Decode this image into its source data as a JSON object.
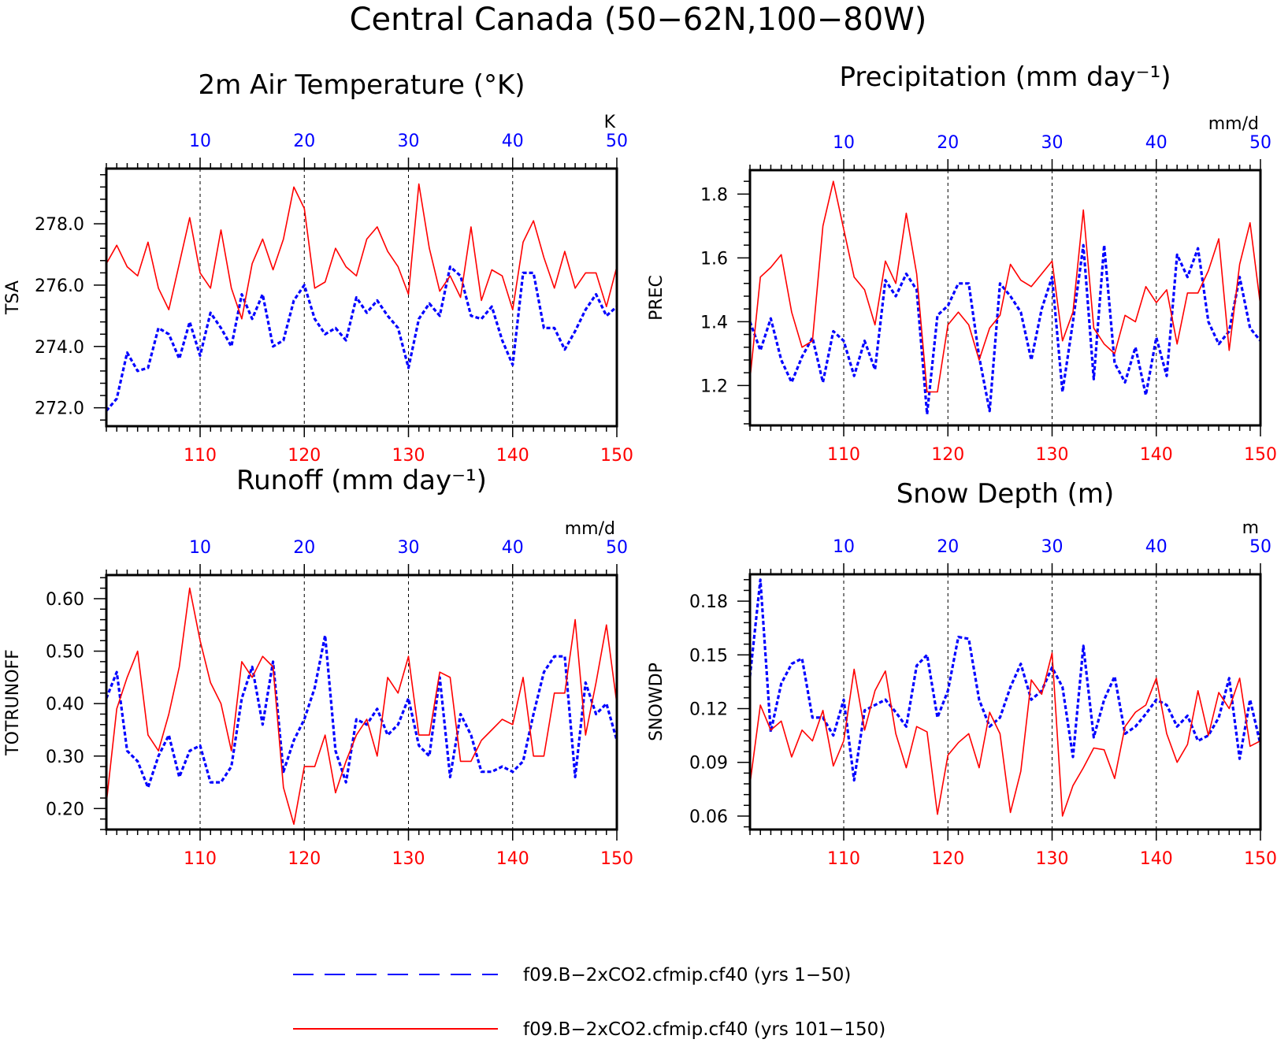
{
  "title": "Central Canada (50−62N,100−80W)",
  "colors": {
    "series_a": "#0000ff",
    "series_b": "#ff0000",
    "axis": "#000000"
  },
  "legend": {
    "placement": "bottom",
    "entries": [
      {
        "label": "f09.B−2xCO2.cfmip.cf40 (yrs 1−50)",
        "color": "#0000ff",
        "style": "dashed"
      },
      {
        "label": "f09.B−2xCO2.cfmip.cf40 (yrs 101−150)",
        "color": "#ff0000",
        "style": "solid"
      }
    ]
  },
  "chart_data": [
    {
      "type": "line",
      "title": "2m Air Temperature (°K)",
      "ylabel": "TSA",
      "unit": "K",
      "ylim": [
        271.4,
        279.8
      ],
      "yticks": [
        272.0,
        274.0,
        276.0,
        278.0
      ],
      "ytick_labels": [
        "272.0",
        "274.0",
        "276.0",
        "278.0"
      ],
      "bottom_axis": {
        "xlim": [
          101,
          150
        ],
        "ticks": [
          110,
          120,
          130,
          140,
          150
        ],
        "tick_labels": [
          "110",
          "120",
          "130",
          "140",
          "150"
        ]
      },
      "top_axis": {
        "xlim": [
          1,
          50
        ],
        "ticks": [
          10,
          20,
          30,
          40,
          50
        ],
        "tick_labels": [
          "10",
          "20",
          "30",
          "40",
          "50"
        ]
      },
      "grid": "dashed vertical at decades",
      "series": [
        {
          "axis": "top",
          "color": "#0000ff",
          "style": "dashed",
          "x": [
            1,
            2,
            3,
            4,
            5,
            6,
            7,
            8,
            9,
            10,
            11,
            12,
            13,
            14,
            15,
            16,
            17,
            18,
            19,
            20,
            21,
            22,
            23,
            24,
            25,
            26,
            27,
            28,
            29,
            30,
            31,
            32,
            33,
            34,
            35,
            36,
            37,
            38,
            39,
            40,
            41,
            42,
            43,
            44,
            45,
            46,
            47,
            48,
            49,
            50
          ],
          "values": [
            271.9,
            272.3,
            273.8,
            273.2,
            273.3,
            274.6,
            274.4,
            273.6,
            274.8,
            273.7,
            275.1,
            274.6,
            274.0,
            275.7,
            274.9,
            275.7,
            274.0,
            274.2,
            275.5,
            276.0,
            274.9,
            274.4,
            274.6,
            274.2,
            275.6,
            275.1,
            275.5,
            275.0,
            274.6,
            273.3,
            274.9,
            275.4,
            275.0,
            276.6,
            276.3,
            275.0,
            274.9,
            275.3,
            274.2,
            273.4,
            276.4,
            276.4,
            274.6,
            274.6,
            273.9,
            274.5,
            275.2,
            275.7,
            275.0,
            275.3
          ]
        },
        {
          "axis": "bottom",
          "color": "#ff0000",
          "style": "solid",
          "x": [
            101,
            102,
            103,
            104,
            105,
            106,
            107,
            108,
            109,
            110,
            111,
            112,
            113,
            114,
            115,
            116,
            117,
            118,
            119,
            120,
            121,
            122,
            123,
            124,
            125,
            126,
            127,
            128,
            129,
            130,
            131,
            132,
            133,
            134,
            135,
            136,
            137,
            138,
            139,
            140,
            141,
            142,
            143,
            144,
            145,
            146,
            147,
            148,
            149,
            150
          ],
          "values": [
            276.7,
            277.3,
            276.6,
            276.3,
            277.4,
            275.9,
            275.2,
            276.7,
            278.2,
            276.4,
            275.9,
            277.8,
            275.9,
            274.9,
            276.7,
            277.5,
            276.5,
            277.5,
            279.2,
            278.5,
            275.9,
            276.1,
            277.2,
            276.6,
            276.3,
            277.5,
            277.9,
            277.1,
            276.6,
            275.7,
            279.3,
            277.2,
            275.8,
            276.3,
            275.6,
            277.9,
            275.5,
            276.5,
            276.3,
            275.2,
            277.4,
            278.1,
            276.9,
            275.9,
            277.1,
            275.9,
            276.4,
            276.4,
            275.3,
            276.6
          ]
        }
      ]
    },
    {
      "type": "line",
      "title": "Precipitation (mm day⁻¹)",
      "ylabel": "PREC",
      "unit": "mm/d",
      "ylim": [
        1.075,
        1.875
      ],
      "yticks": [
        1.2,
        1.4,
        1.6,
        1.8
      ],
      "ytick_labels": [
        "1.2",
        "1.4",
        "1.6",
        "1.8"
      ],
      "bottom_axis": {
        "xlim": [
          101,
          150
        ],
        "ticks": [
          110,
          120,
          130,
          140,
          150
        ],
        "tick_labels": [
          "110",
          "120",
          "130",
          "140",
          "150"
        ]
      },
      "top_axis": {
        "xlim": [
          1,
          50
        ],
        "ticks": [
          10,
          20,
          30,
          40,
          50
        ],
        "tick_labels": [
          "10",
          "20",
          "30",
          "40",
          "50"
        ]
      },
      "grid": "dashed vertical at decades",
      "series": [
        {
          "axis": "top",
          "color": "#0000ff",
          "style": "dashed",
          "x": [
            1,
            2,
            3,
            4,
            5,
            6,
            7,
            8,
            9,
            10,
            11,
            12,
            13,
            14,
            15,
            16,
            17,
            18,
            19,
            20,
            21,
            22,
            23,
            24,
            25,
            26,
            27,
            28,
            29,
            30,
            31,
            32,
            33,
            34,
            35,
            36,
            37,
            38,
            39,
            40,
            41,
            42,
            43,
            44,
            45,
            46,
            47,
            48,
            49,
            50
          ],
          "values": [
            1.4,
            1.31,
            1.41,
            1.28,
            1.21,
            1.29,
            1.35,
            1.21,
            1.37,
            1.34,
            1.23,
            1.34,
            1.25,
            1.53,
            1.48,
            1.55,
            1.5,
            1.11,
            1.42,
            1.45,
            1.52,
            1.52,
            1.29,
            1.12,
            1.52,
            1.48,
            1.43,
            1.28,
            1.44,
            1.54,
            1.18,
            1.4,
            1.64,
            1.22,
            1.64,
            1.27,
            1.21,
            1.32,
            1.17,
            1.35,
            1.23,
            1.61,
            1.54,
            1.63,
            1.4,
            1.33,
            1.37,
            1.54,
            1.38,
            1.34
          ]
        },
        {
          "axis": "bottom",
          "color": "#ff0000",
          "style": "solid",
          "x": [
            101,
            102,
            103,
            104,
            105,
            106,
            107,
            108,
            109,
            110,
            111,
            112,
            113,
            114,
            115,
            116,
            117,
            118,
            119,
            120,
            121,
            122,
            123,
            124,
            125,
            126,
            127,
            128,
            129,
            130,
            131,
            132,
            133,
            134,
            135,
            136,
            137,
            138,
            139,
            140,
            141,
            142,
            143,
            144,
            145,
            146,
            147,
            148,
            149,
            150
          ],
          "values": [
            1.22,
            1.54,
            1.57,
            1.61,
            1.43,
            1.32,
            1.34,
            1.7,
            1.84,
            1.69,
            1.54,
            1.5,
            1.39,
            1.59,
            1.52,
            1.74,
            1.55,
            1.18,
            1.18,
            1.39,
            1.43,
            1.39,
            1.28,
            1.38,
            1.42,
            1.58,
            1.53,
            1.51,
            1.55,
            1.59,
            1.34,
            1.43,
            1.75,
            1.38,
            1.33,
            1.3,
            1.42,
            1.4,
            1.51,
            1.46,
            1.5,
            1.33,
            1.49,
            1.49,
            1.56,
            1.66,
            1.31,
            1.58,
            1.71,
            1.45
          ]
        }
      ]
    },
    {
      "type": "line",
      "title": "Runoff (mm day⁻¹)",
      "ylabel": "TOTRUNOFF",
      "unit": "mm/d",
      "ylim": [
        0.16,
        0.645
      ],
      "yticks": [
        0.2,
        0.3,
        0.4,
        0.5,
        0.6
      ],
      "ytick_labels": [
        "0.20",
        "0.30",
        "0.40",
        "0.50",
        "0.60"
      ],
      "bottom_axis": {
        "xlim": [
          101,
          150
        ],
        "ticks": [
          110,
          120,
          130,
          140,
          150
        ],
        "tick_labels": [
          "110",
          "120",
          "130",
          "140",
          "150"
        ]
      },
      "top_axis": {
        "xlim": [
          1,
          50
        ],
        "ticks": [
          10,
          20,
          30,
          40,
          50
        ],
        "tick_labels": [
          "10",
          "20",
          "30",
          "40",
          "50"
        ]
      },
      "grid": "dashed vertical at decades",
      "series": [
        {
          "axis": "top",
          "color": "#0000ff",
          "style": "dashed",
          "x": [
            1,
            2,
            3,
            4,
            5,
            6,
            7,
            8,
            9,
            10,
            11,
            12,
            13,
            14,
            15,
            16,
            17,
            18,
            19,
            20,
            21,
            22,
            23,
            24,
            25,
            26,
            27,
            28,
            29,
            30,
            31,
            32,
            33,
            34,
            35,
            36,
            37,
            38,
            39,
            40,
            41,
            42,
            43,
            44,
            45,
            46,
            47,
            48,
            49,
            50
          ],
          "values": [
            0.41,
            0.46,
            0.31,
            0.29,
            0.24,
            0.3,
            0.34,
            0.26,
            0.31,
            0.32,
            0.25,
            0.25,
            0.28,
            0.41,
            0.47,
            0.36,
            0.48,
            0.27,
            0.33,
            0.37,
            0.43,
            0.53,
            0.31,
            0.25,
            0.37,
            0.36,
            0.39,
            0.34,
            0.36,
            0.41,
            0.32,
            0.3,
            0.45,
            0.26,
            0.38,
            0.34,
            0.27,
            0.27,
            0.28,
            0.27,
            0.29,
            0.38,
            0.46,
            0.49,
            0.49,
            0.26,
            0.44,
            0.38,
            0.4,
            0.33
          ]
        },
        {
          "axis": "bottom",
          "color": "#ff0000",
          "style": "solid",
          "x": [
            101,
            102,
            103,
            104,
            105,
            106,
            107,
            108,
            109,
            110,
            111,
            112,
            113,
            114,
            115,
            116,
            117,
            118,
            119,
            120,
            121,
            122,
            123,
            124,
            125,
            126,
            127,
            128,
            129,
            130,
            131,
            132,
            133,
            134,
            135,
            136,
            137,
            138,
            139,
            140,
            141,
            142,
            143,
            144,
            145,
            146,
            147,
            148,
            149,
            150
          ],
          "values": [
            0.21,
            0.39,
            0.45,
            0.5,
            0.34,
            0.31,
            0.38,
            0.47,
            0.62,
            0.52,
            0.44,
            0.4,
            0.31,
            0.48,
            0.45,
            0.49,
            0.47,
            0.24,
            0.17,
            0.28,
            0.28,
            0.34,
            0.23,
            0.29,
            0.34,
            0.37,
            0.3,
            0.45,
            0.42,
            0.49,
            0.34,
            0.34,
            0.46,
            0.45,
            0.29,
            0.29,
            0.33,
            0.35,
            0.37,
            0.36,
            0.45,
            0.3,
            0.3,
            0.42,
            0.42,
            0.56,
            0.34,
            0.44,
            0.55,
            0.4
          ]
        }
      ]
    },
    {
      "type": "line",
      "title": "Snow Depth (m)",
      "ylabel": "SNOWDP",
      "unit": "m",
      "ylim": [
        0.0525,
        0.195
      ],
      "yticks": [
        0.06,
        0.09,
        0.12,
        0.15,
        0.18
      ],
      "ytick_labels": [
        "0.06",
        "0.09",
        "0.12",
        "0.15",
        "0.18"
      ],
      "bottom_axis": {
        "xlim": [
          101,
          150
        ],
        "ticks": [
          110,
          120,
          130,
          140,
          150
        ],
        "tick_labels": [
          "110",
          "120",
          "130",
          "140",
          "150"
        ]
      },
      "top_axis": {
        "xlim": [
          1,
          50
        ],
        "ticks": [
          10,
          20,
          30,
          40,
          50
        ],
        "tick_labels": [
          "10",
          "20",
          "30",
          "40",
          "50"
        ]
      },
      "grid": "dashed vertical at decades",
      "series": [
        {
          "axis": "top",
          "color": "#0000ff",
          "style": "dashed",
          "x": [
            1,
            2,
            3,
            4,
            5,
            6,
            7,
            8,
            9,
            10,
            11,
            12,
            13,
            14,
            15,
            16,
            17,
            18,
            19,
            20,
            21,
            22,
            23,
            24,
            25,
            26,
            27,
            28,
            29,
            30,
            31,
            32,
            33,
            34,
            35,
            36,
            37,
            38,
            39,
            40,
            41,
            42,
            43,
            44,
            45,
            46,
            47,
            48,
            49,
            50
          ],
          "values": [
            0.138,
            0.192,
            0.107,
            0.134,
            0.145,
            0.148,
            0.115,
            0.115,
            0.105,
            0.125,
            0.08,
            0.119,
            0.122,
            0.125,
            0.118,
            0.11,
            0.144,
            0.15,
            0.115,
            0.13,
            0.16,
            0.159,
            0.125,
            0.11,
            0.115,
            0.132,
            0.145,
            0.125,
            0.13,
            0.143,
            0.132,
            0.093,
            0.155,
            0.104,
            0.125,
            0.138,
            0.106,
            0.11,
            0.117,
            0.125,
            0.122,
            0.11,
            0.116,
            0.102,
            0.105,
            0.115,
            0.137,
            0.092,
            0.125,
            0.1
          ]
        },
        {
          "axis": "bottom",
          "color": "#ff0000",
          "style": "solid",
          "x": [
            101,
            102,
            103,
            104,
            105,
            106,
            107,
            108,
            109,
            110,
            111,
            112,
            113,
            114,
            115,
            116,
            117,
            118,
            119,
            120,
            121,
            122,
            123,
            124,
            125,
            126,
            127,
            128,
            129,
            130,
            131,
            132,
            133,
            134,
            135,
            136,
            137,
            138,
            139,
            140,
            141,
            142,
            143,
            144,
            145,
            146,
            147,
            148,
            149,
            150
          ],
          "values": [
            0.078,
            0.122,
            0.108,
            0.113,
            0.093,
            0.108,
            0.102,
            0.119,
            0.088,
            0.102,
            0.142,
            0.108,
            0.13,
            0.141,
            0.106,
            0.087,
            0.11,
            0.107,
            0.061,
            0.094,
            0.101,
            0.106,
            0.087,
            0.118,
            0.106,
            0.062,
            0.085,
            0.136,
            0.128,
            0.151,
            0.06,
            0.077,
            0.087,
            0.098,
            0.097,
            0.081,
            0.11,
            0.118,
            0.122,
            0.137,
            0.106,
            0.09,
            0.1,
            0.13,
            0.105,
            0.129,
            0.12,
            0.137,
            0.099,
            0.102
          ]
        }
      ]
    }
  ]
}
